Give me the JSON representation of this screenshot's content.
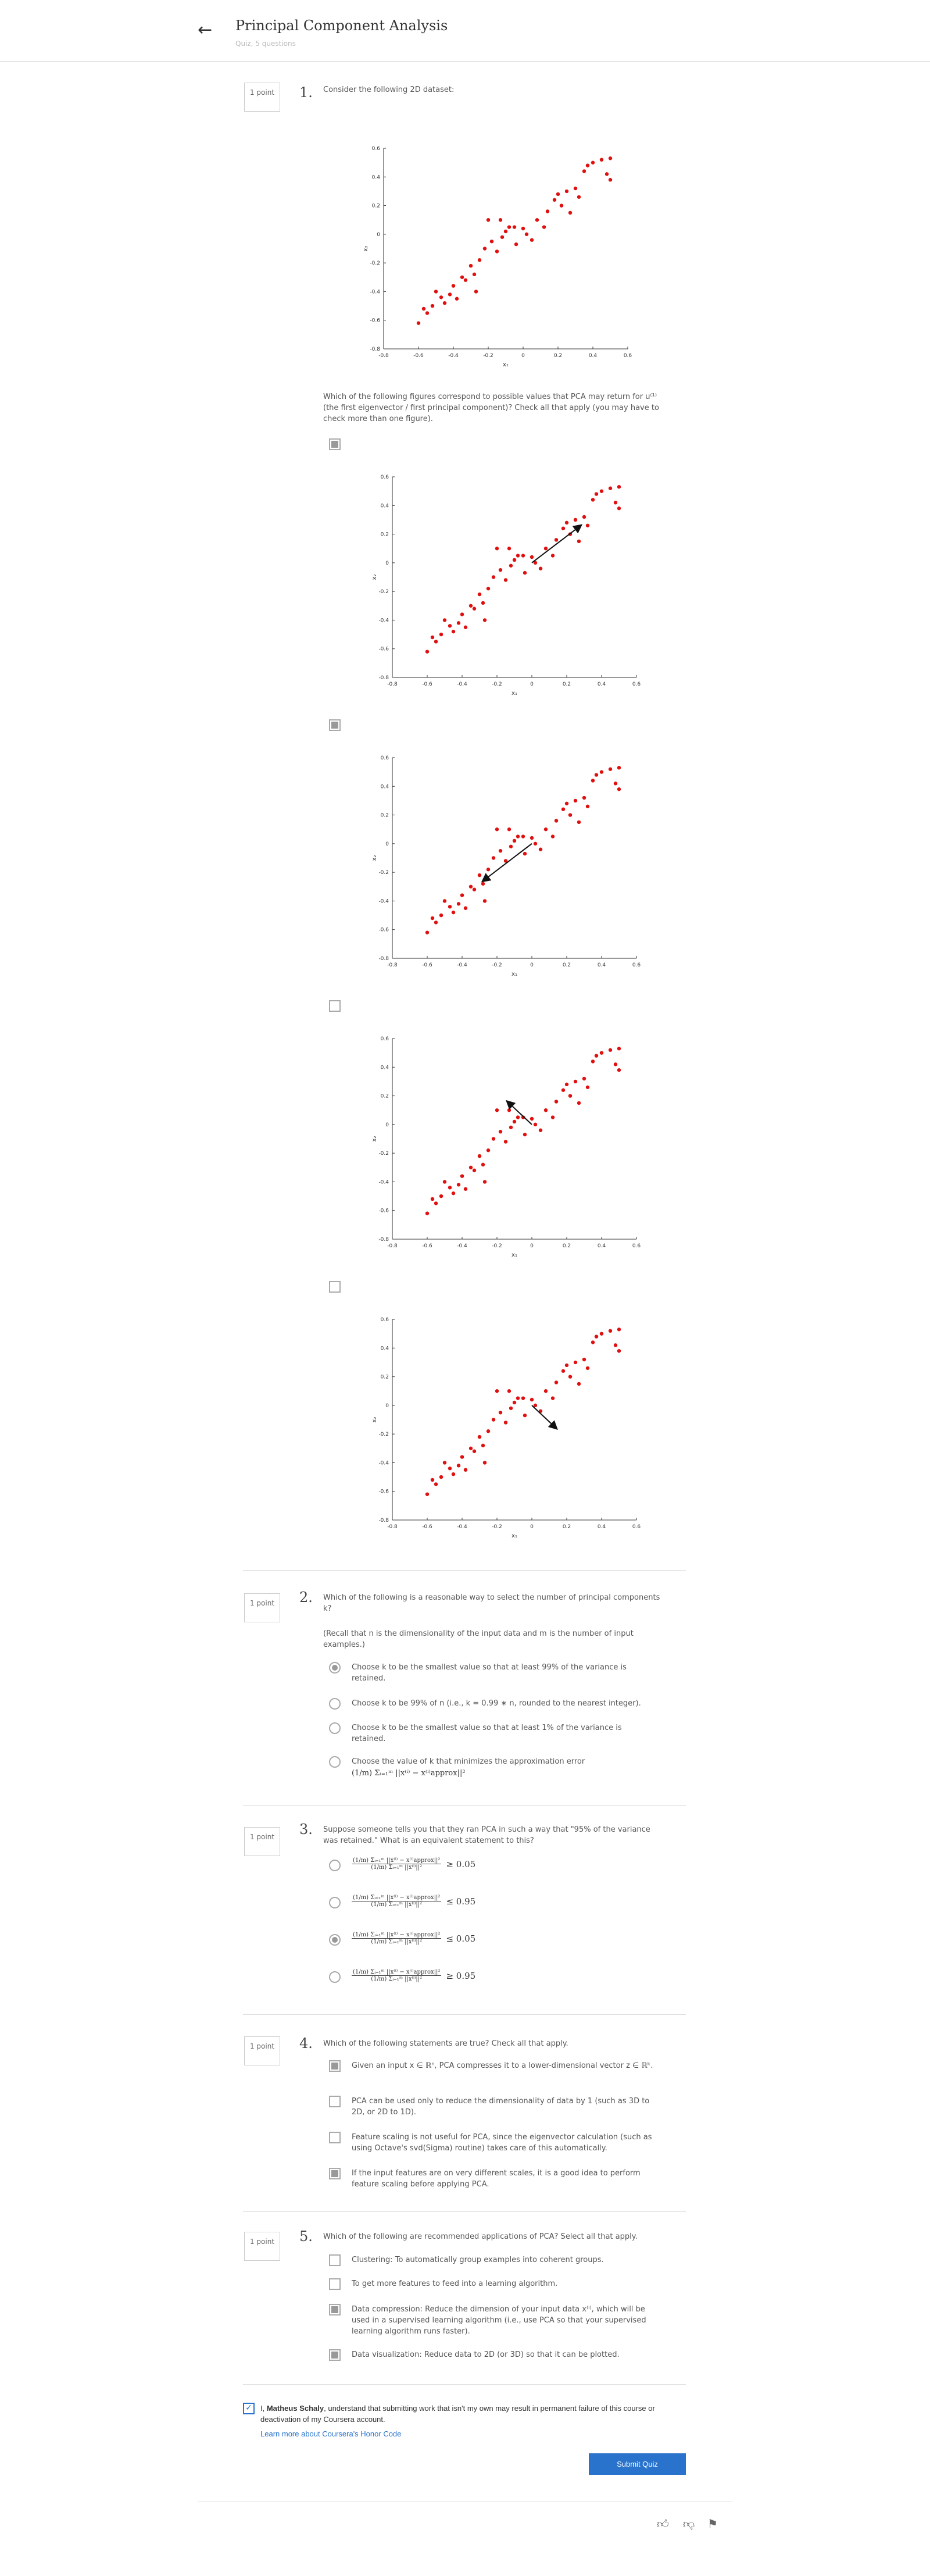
{
  "header": {
    "title": "Principal Component Analysis",
    "subtitle": "Quiz, 5 questions"
  },
  "point_label": "1 point",
  "q1": {
    "num": "1.",
    "text": "Consider the following 2D dataset:",
    "prompt": "Which of the following figures correspond to possible values that PCA may return for u⁽¹⁾ (the first eigenvector / first principal component)? Check all that apply (you may have to check more than one figure).",
    "checked": [
      true,
      true,
      false,
      false
    ]
  },
  "q2": {
    "num": "2.",
    "text": "Which of the following is a reasonable way to select the number of principal components k?",
    "recall": "(Recall that n is the dimensionality of the input data and m is the number of input examples.)",
    "options": [
      "Choose k to be the smallest value so that at least 99% of the variance is retained.",
      "Choose k to be 99% of n (i.e., k = 0.99 ∗ n, rounded to the nearest integer).",
      "Choose k to be the smallest value so that at least 1% of the variance is retained.",
      "Choose the value of k that minimizes the approximation error"
    ],
    "formula": "(1/m) Σᵢ₌₁ᵐ ||x⁽ⁱ⁾ − x⁽ⁱ⁾approx||²",
    "selected": 0
  },
  "q3": {
    "num": "3.",
    "text": "Suppose someone tells you that they ran PCA in such a way that \"95% of the variance was retained.\" What is an equivalent statement to this?",
    "frac_num": "(1/m) Σᵢ₌₁ᵐ ||x⁽ⁱ⁾ − x⁽ⁱ⁾approx||²",
    "frac_den": "(1/m) Σᵢ₌₁ᵐ ||x⁽ⁱ⁾||²",
    "relations": [
      "≥ 0.05",
      "≤ 0.95",
      "≤ 0.05",
      "≥ 0.95"
    ],
    "selected": 2
  },
  "q4": {
    "num": "4.",
    "text": "Which of the following statements are true? Check all that apply.",
    "options": [
      "Given an input x ∈ ℝⁿ, PCA compresses it to a lower-dimensional vector z ∈ ℝᵏ.",
      "PCA can be used only to reduce the dimensionality of data by 1 (such as 3D to 2D, or 2D to 1D).",
      "Feature scaling is not useful for PCA, since the eigenvector calculation (such as using Octave's svd(Sigma) routine) takes care of this automatically.",
      "If the input features are on very different scales, it is a good idea to perform feature scaling before applying PCA."
    ],
    "checked": [
      true,
      false,
      false,
      true
    ]
  },
  "q5": {
    "num": "5.",
    "text": "Which of the following are recommended applications of PCA? Select all that apply.",
    "options": [
      "Clustering: To automatically group examples into coherent groups.",
      "To get more features to feed into a learning algorithm.",
      "Data compression: Reduce the dimension of your input data x⁽ⁱ⁾, which will be used in a supervised learning algorithm (i.e., use PCA so that your supervised learning algorithm runs faster).",
      "Data visualization: Reduce data to 2D (or 3D) so that it can be plotted."
    ],
    "checked": [
      false,
      false,
      true,
      true
    ]
  },
  "honor": {
    "text_pre": "I, ",
    "name": "Matheus Schaly",
    "text_post": ", understand that submitting work that isn't my own may result in permanent failure of this course or deactivation of my Coursera account.",
    "link": "Learn more about Coursera's Honor Code"
  },
  "submit_label": "Submit Quiz",
  "chart_data": {
    "type": "scatter",
    "xlabel": "x₁",
    "ylabel": "x₂",
    "xlim": [
      -0.8,
      0.6
    ],
    "ylim": [
      -0.8,
      0.6
    ],
    "xticks": [
      "-0.8",
      "-0.6",
      "-0.4",
      "-0.2",
      "0",
      "0.2",
      "0.4",
      "0.6"
    ],
    "yticks": [
      "0.6",
      "0.4",
      "0.2",
      "0",
      "-0.2",
      "-0.4",
      "-0.6",
      "-0.8"
    ],
    "points": [
      [
        -0.6,
        -0.62
      ],
      [
        -0.57,
        -0.52
      ],
      [
        -0.55,
        -0.55
      ],
      [
        -0.52,
        -0.5
      ],
      [
        -0.5,
        -0.4
      ],
      [
        -0.47,
        -0.44
      ],
      [
        -0.45,
        -0.48
      ],
      [
        -0.42,
        -0.42
      ],
      [
        -0.4,
        -0.36
      ],
      [
        -0.38,
        -0.45
      ],
      [
        -0.35,
        -0.3
      ],
      [
        -0.33,
        -0.32
      ],
      [
        -0.3,
        -0.22
      ],
      [
        -0.28,
        -0.28
      ],
      [
        -0.27,
        -0.4
      ],
      [
        -0.25,
        -0.18
      ],
      [
        -0.22,
        -0.1
      ],
      [
        -0.2,
        0.1
      ],
      [
        -0.18,
        -0.05
      ],
      [
        -0.15,
        -0.12
      ],
      [
        -0.13,
        0.1
      ],
      [
        -0.12,
        -0.02
      ],
      [
        -0.1,
        0.02
      ],
      [
        -0.08,
        0.05
      ],
      [
        -0.05,
        0.05
      ],
      [
        -0.04,
        -0.07
      ],
      [
        0,
        0.04
      ],
      [
        0.02,
        0.0
      ],
      [
        0.05,
        -0.04
      ],
      [
        0.08,
        0.1
      ],
      [
        0.12,
        0.05
      ],
      [
        0.14,
        0.16
      ],
      [
        0.18,
        0.24
      ],
      [
        0.2,
        0.28
      ],
      [
        0.22,
        0.2
      ],
      [
        0.25,
        0.3
      ],
      [
        0.27,
        0.15
      ],
      [
        0.3,
        0.32
      ],
      [
        0.32,
        0.26
      ],
      [
        0.35,
        0.44
      ],
      [
        0.37,
        0.48
      ],
      [
        0.4,
        0.5
      ],
      [
        0.45,
        0.52
      ],
      [
        0.48,
        0.42
      ],
      [
        0.5,
        0.53
      ],
      [
        0.5,
        0.38
      ]
    ],
    "arrows": [
      [
        0.0,
        0.0,
        0.28,
        0.26
      ],
      [
        0.0,
        0.0,
        -0.28,
        -0.26
      ],
      [
        0.0,
        0.0,
        -0.14,
        0.16
      ],
      [
        0.0,
        0.0,
        0.14,
        -0.16
      ]
    ]
  }
}
